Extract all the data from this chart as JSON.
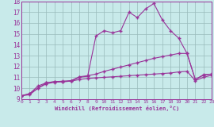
{
  "xlabel": "Windchill (Refroidissement éolien,°C)",
  "xlim": [
    0,
    23
  ],
  "ylim": [
    9,
    18
  ],
  "yticks": [
    9,
    10,
    11,
    12,
    13,
    14,
    15,
    16,
    17,
    18
  ],
  "xticks": [
    0,
    1,
    2,
    3,
    4,
    5,
    6,
    7,
    8,
    9,
    10,
    11,
    12,
    13,
    14,
    15,
    16,
    17,
    18,
    19,
    20,
    21,
    22,
    23
  ],
  "bg_color": "#c8eaea",
  "line_color": "#993399",
  "grid_color": "#99bbbb",
  "curve1_y": [
    9.3,
    9.5,
    10.0,
    10.5,
    10.6,
    10.6,
    10.65,
    11.0,
    11.1,
    14.8,
    15.3,
    15.1,
    15.3,
    17.0,
    16.5,
    17.3,
    17.8,
    16.3,
    15.3,
    14.6,
    13.2,
    10.8,
    11.25,
    11.3
  ],
  "curve2_y": [
    9.3,
    9.5,
    10.2,
    10.5,
    10.6,
    10.65,
    10.7,
    11.05,
    11.15,
    11.3,
    11.55,
    11.75,
    11.95,
    12.15,
    12.35,
    12.55,
    12.75,
    12.9,
    13.05,
    13.2,
    13.2,
    10.8,
    11.2,
    11.3
  ],
  "curve3_y": [
    9.3,
    9.4,
    10.0,
    10.4,
    10.55,
    10.6,
    10.65,
    10.8,
    10.9,
    10.95,
    11.0,
    11.05,
    11.1,
    11.15,
    11.2,
    11.25,
    11.3,
    11.35,
    11.4,
    11.5,
    11.55,
    10.7,
    11.0,
    11.2
  ]
}
